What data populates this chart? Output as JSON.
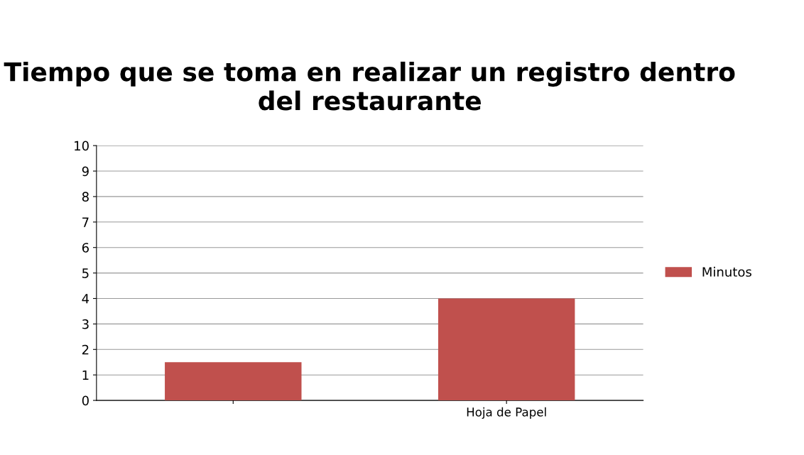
{
  "chart_data": {
    "type": "bar",
    "title": "Tiempo que se toma en realizar un registro dentro del restaurante",
    "categories": [
      null,
      "Hoja de Papel"
    ],
    "series": [
      {
        "name": "Minutos",
        "color": "#c0504d",
        "values": [
          1.5,
          4
        ]
      }
    ],
    "ylim": [
      0,
      10
    ],
    "yticks": [
      0,
      1,
      2,
      3,
      4,
      5,
      6,
      7,
      8,
      9,
      10
    ],
    "grid": "y",
    "legend": "right"
  }
}
